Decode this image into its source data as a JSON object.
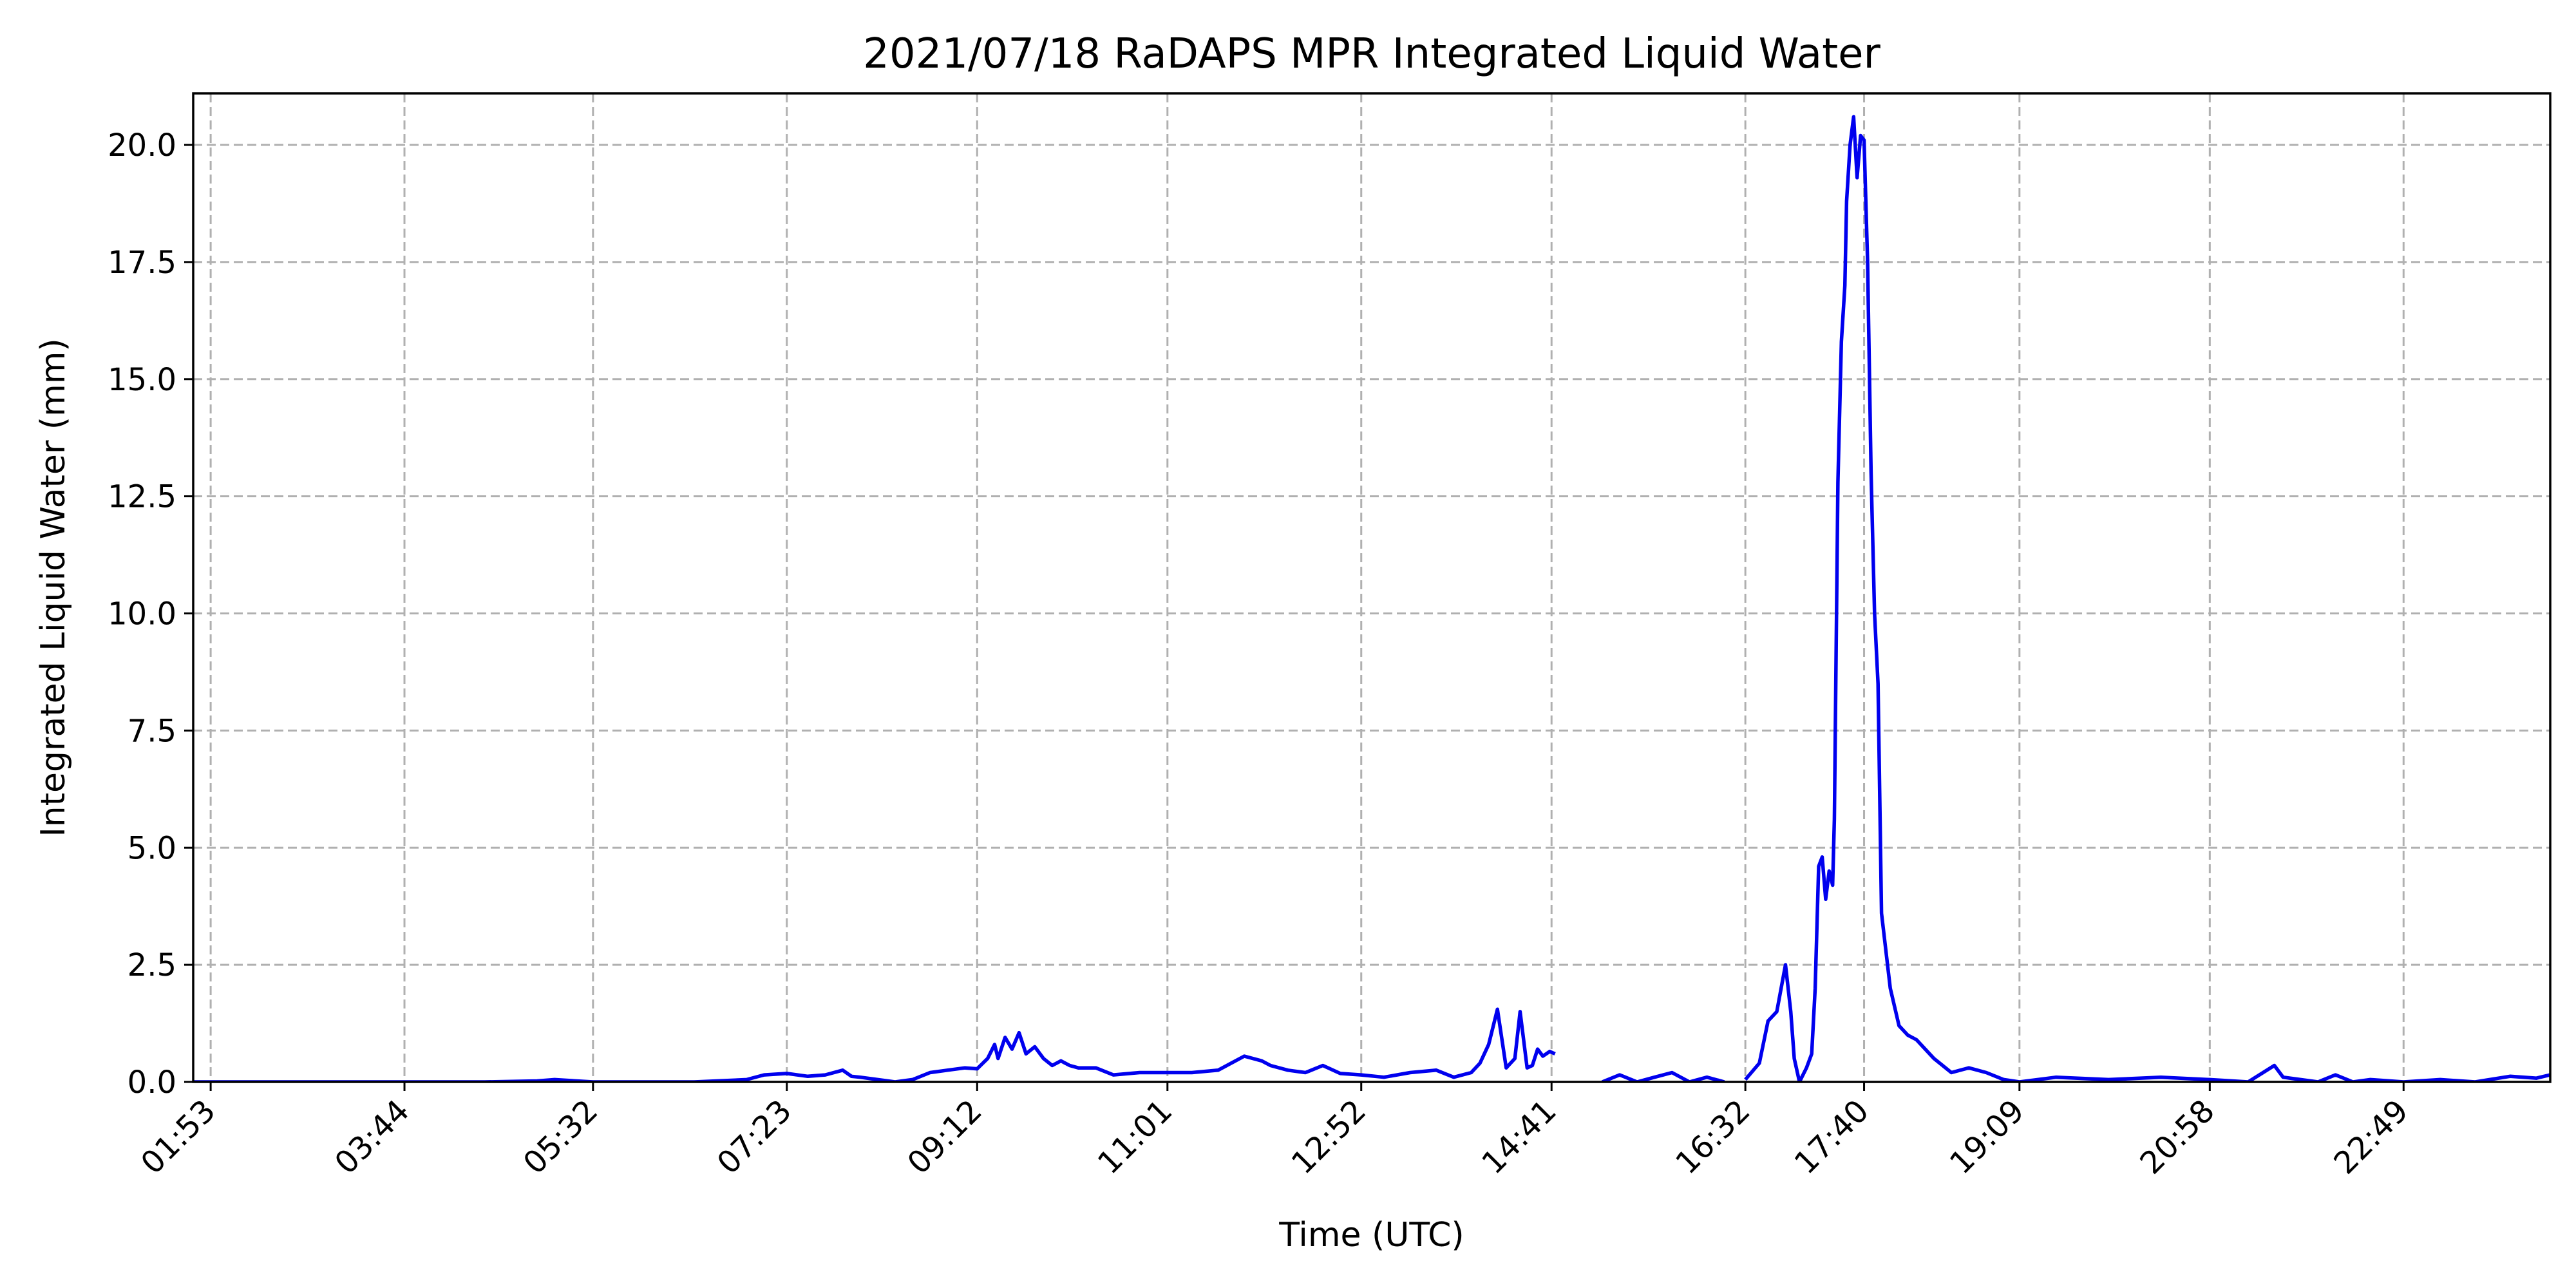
{
  "chart_data": {
    "type": "line",
    "title": "2021/07/18 RaDAPS MPR Integrated Liquid Water",
    "xlabel": "Time (UTC)",
    "ylabel": "Integrated Liquid Water (mm)",
    "xlim": [
      "01:43",
      "24:13"
    ],
    "ylim": [
      0,
      21.1
    ],
    "grid": true,
    "legend": "none",
    "x_ticks": [
      "01:53",
      "03:44",
      "05:32",
      "07:23",
      "09:12",
      "11:01",
      "12:52",
      "14:41",
      "16:32",
      "17:40",
      "19:09",
      "20:58",
      "22:49"
    ],
    "y_ticks": [
      "0.0",
      "2.5",
      "5.0",
      "7.5",
      "10.0",
      "12.5",
      "15.0",
      "17.5",
      "20.0"
    ],
    "line_color": "#0000ee",
    "series": [
      {
        "segments": [
          {
            "x": [
              "01:43",
              "03:00",
              "04:30",
              "05:00",
              "05:10",
              "05:32",
              "06:30",
              "07:00",
              "07:10",
              "07:23",
              "07:35",
              "07:45",
              "07:55",
              "08:00",
              "08:05",
              "08:15",
              "08:25",
              "08:35",
              "08:45",
              "08:55",
              "09:05",
              "09:12",
              "09:18",
              "09:22",
              "09:24",
              "09:28",
              "09:32",
              "09:36",
              "09:40",
              "09:45",
              "09:50",
              "09:55",
              "10:00",
              "10:05",
              "10:10",
              "10:20",
              "10:30",
              "10:45",
              "11:01",
              "11:15",
              "11:30",
              "11:45",
              "11:55",
              "12:00",
              "12:10",
              "12:20",
              "12:30",
              "12:40",
              "12:52",
              "13:05",
              "13:20",
              "13:35",
              "13:45",
              "13:55",
              "14:00",
              "14:05",
              "14:10",
              "14:15",
              "14:20",
              "14:23",
              "14:27",
              "14:30",
              "14:33",
              "14:36",
              "14:40",
              "14:43"
            ],
            "y": [
              0.0,
              0.0,
              0.0,
              0.02,
              0.05,
              0.0,
              0.0,
              0.05,
              0.15,
              0.18,
              0.12,
              0.15,
              0.25,
              0.12,
              0.1,
              0.05,
              0.0,
              0.05,
              0.2,
              0.25,
              0.3,
              0.28,
              0.5,
              0.8,
              0.5,
              0.95,
              0.7,
              1.05,
              0.6,
              0.75,
              0.5,
              0.35,
              0.45,
              0.35,
              0.3,
              0.3,
              0.15,
              0.2,
              0.2,
              0.2,
              0.25,
              0.55,
              0.45,
              0.35,
              0.25,
              0.2,
              0.35,
              0.18,
              0.15,
              0.1,
              0.2,
              0.25,
              0.1,
              0.2,
              0.4,
              0.8,
              1.55,
              0.3,
              0.5,
              1.5,
              0.3,
              0.35,
              0.7,
              0.55,
              0.65,
              0.6
            ]
          },
          {
            "x": [
              "15:10",
              "15:20",
              "15:30",
              "15:40",
              "15:50",
              "16:00",
              "16:10",
              "16:20"
            ],
            "y": [
              0.0,
              0.15,
              0.0,
              0.1,
              0.2,
              0.0,
              0.1,
              0.0
            ]
          },
          {
            "x": [
              "16:32",
              "16:40",
              "16:45",
              "16:50",
              "16:55",
              "16:58",
              "17:00",
              "17:03",
              "17:07",
              "17:10",
              "17:12",
              "17:14",
              "17:16",
              "17:18",
              "17:20",
              "17:22",
              "17:23",
              "17:25",
              "17:27",
              "17:29",
              "17:30",
              "17:32",
              "17:34",
              "17:36",
              "17:38",
              "17:40",
              "17:42",
              "17:44",
              "17:46",
              "17:48",
              "17:50",
              "17:55",
              "18:00",
              "18:05",
              "18:10",
              "18:20",
              "18:30",
              "18:40",
              "18:50",
              "19:00",
              "19:09",
              "19:30",
              "20:00",
              "20:30",
              "20:58",
              "21:20",
              "21:35",
              "21:40",
              "21:50",
              "22:00",
              "22:10",
              "22:20",
              "22:30",
              "22:49",
              "23:10",
              "23:30",
              "23:50",
              "24:05",
              "24:13"
            ],
            "y": [
              0.05,
              0.4,
              1.3,
              1.5,
              2.5,
              1.5,
              0.5,
              0.0,
              0.3,
              0.6,
              2.0,
              4.6,
              4.8,
              3.9,
              4.5,
              4.2,
              5.6,
              12.8,
              15.8,
              17.0,
              18.8,
              20.0,
              20.6,
              19.3,
              20.2,
              20.1,
              17.5,
              13.0,
              10.0,
              8.5,
              3.6,
              2.0,
              1.2,
              1.0,
              0.9,
              0.5,
              0.2,
              0.3,
              0.2,
              0.05,
              0.0,
              0.1,
              0.05,
              0.1,
              0.05,
              0.0,
              0.35,
              0.1,
              0.05,
              0.0,
              0.15,
              0.0,
              0.05,
              0.0,
              0.05,
              0.0,
              0.12,
              0.08,
              0.15
            ]
          }
        ]
      }
    ]
  }
}
